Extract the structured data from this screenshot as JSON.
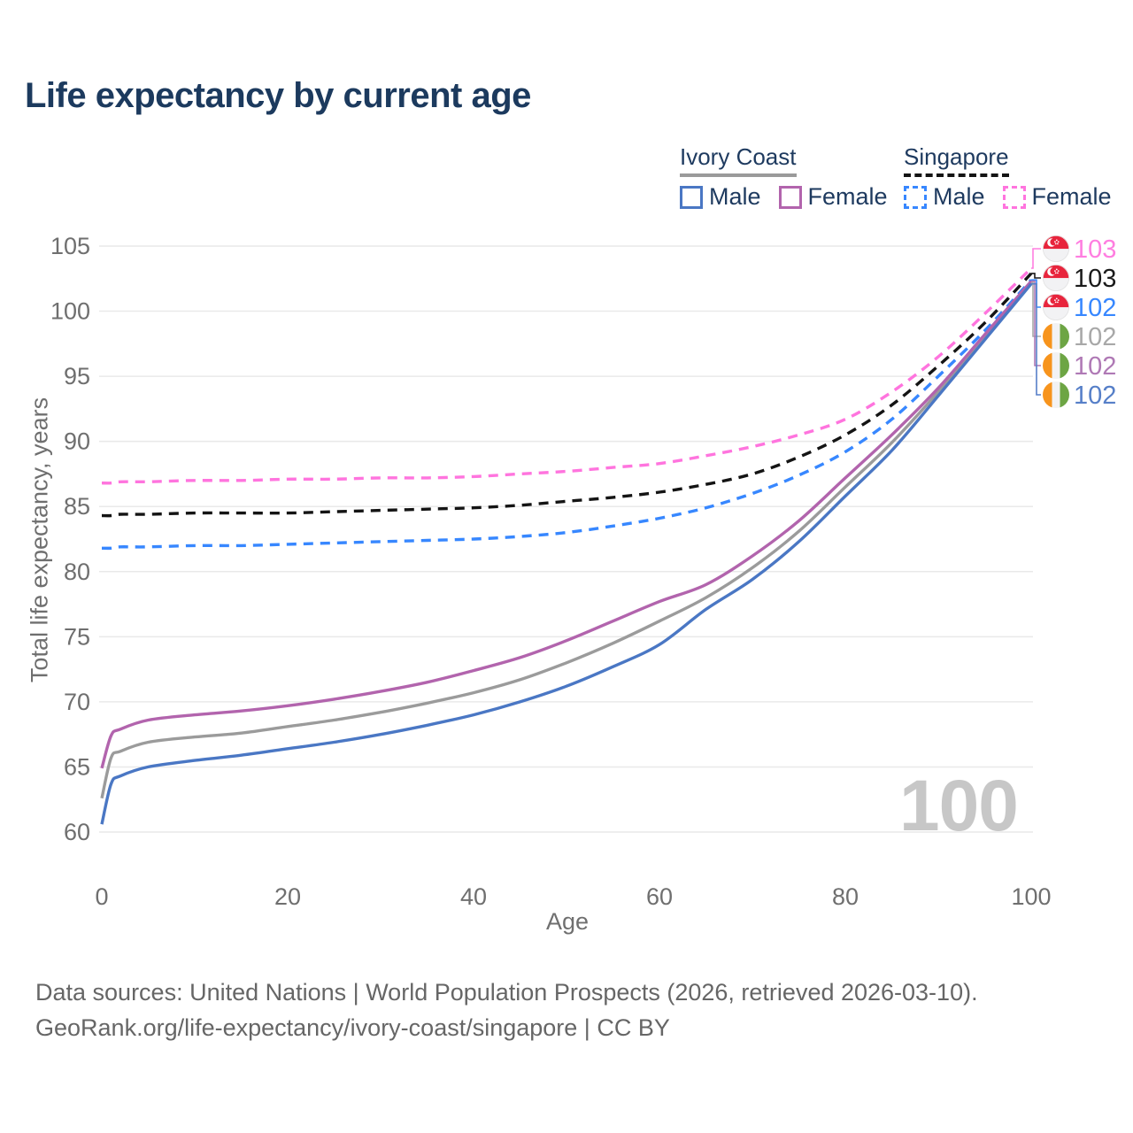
{
  "title": "Life expectancy by current age",
  "legend": {
    "groups": [
      {
        "label": "Ivory Coast",
        "line_style": "solid",
        "underline_color": "#9a9a9a",
        "items": [
          {
            "label": "Male",
            "color": "#4a77c4"
          },
          {
            "label": "Female",
            "color": "#b264ad"
          }
        ]
      },
      {
        "label": "Singapore",
        "line_style": "dashed",
        "underline_color": "#141414",
        "items": [
          {
            "label": "Male",
            "color": "#3787ff"
          },
          {
            "label": "Female",
            "color": "#ff74de"
          }
        ]
      }
    ]
  },
  "axes": {
    "x_label": "Age",
    "y_label": "Total life expectancy, years",
    "x_ticks": [
      0,
      20,
      40,
      60,
      80,
      100
    ],
    "y_ticks": [
      60,
      65,
      70,
      75,
      80,
      85,
      90,
      95,
      100,
      105
    ],
    "x_range": [
      0,
      100
    ],
    "y_range": [
      60,
      105
    ]
  },
  "watermark": "100",
  "end_labels": [
    {
      "flag": "singapore",
      "value": "103",
      "color": "#ff7ee0"
    },
    {
      "flag": "singapore",
      "value": "103",
      "color": "#1a1a1a"
    },
    {
      "flag": "singapore",
      "value": "102",
      "color": "#3787ff"
    },
    {
      "flag": "ivory-coast",
      "value": "102",
      "color": "#a8a8a8"
    },
    {
      "flag": "ivory-coast",
      "value": "102",
      "color": "#af79b5"
    },
    {
      "flag": "ivory-coast",
      "value": "102",
      "color": "#567fc8"
    }
  ],
  "footer": {
    "line1": "Data sources: United Nations | World Population Prospects (2026, retrieved 2026-03-10).",
    "line2": "GeoRank.org/life-expectancy/ivory-coast/singapore | CC BY"
  },
  "theme": {
    "title_color": "#1c3a5e",
    "grid_color": "#e9e9e9",
    "tick_color": "#6f6f6f",
    "footer_color": "#666666",
    "watermark_color": "#c7c7c7",
    "flag_singapore_red": "#e8243c",
    "flag_ivory_orange": "#f7941d",
    "flag_ivory_green": "#6da544"
  },
  "chart_data": {
    "type": "line",
    "title": "Life expectancy by current age",
    "xlabel": "Age",
    "ylabel": "Total life expectancy, years",
    "x_range": [
      0,
      100
    ],
    "y_range": [
      60,
      105
    ],
    "grid": "horizontal",
    "legend_position": "top-right",
    "x": [
      0,
      1,
      2,
      5,
      10,
      15,
      20,
      25,
      30,
      35,
      40,
      45,
      50,
      55,
      60,
      65,
      70,
      75,
      80,
      85,
      90,
      95,
      100
    ],
    "series": [
      {
        "name": "Singapore Female",
        "country": "Singapore",
        "sex": "Female",
        "style": "dashed",
        "color": "#ff74de",
        "values": [
          86.8,
          86.8,
          86.9,
          86.9,
          87.0,
          87.0,
          87.1,
          87.1,
          87.2,
          87.2,
          87.3,
          87.5,
          87.7,
          88.0,
          88.3,
          88.9,
          89.6,
          90.5,
          91.7,
          93.8,
          96.5,
          99.8,
          103.3
        ]
      },
      {
        "name": "Singapore Both Sexes",
        "country": "Singapore",
        "sex": "Both",
        "style": "dashed",
        "color": "#141414",
        "values": [
          84.3,
          84.3,
          84.4,
          84.4,
          84.5,
          84.5,
          84.5,
          84.6,
          84.7,
          84.8,
          84.9,
          85.1,
          85.4,
          85.7,
          86.1,
          86.7,
          87.5,
          88.8,
          90.5,
          92.8,
          95.8,
          99.1,
          102.9
        ]
      },
      {
        "name": "Singapore Male",
        "country": "Singapore",
        "sex": "Male",
        "style": "dashed",
        "color": "#3787ff",
        "values": [
          81.8,
          81.8,
          81.9,
          81.9,
          82.0,
          82.0,
          82.1,
          82.2,
          82.3,
          82.4,
          82.5,
          82.7,
          83.0,
          83.5,
          84.1,
          84.9,
          86.0,
          87.4,
          89.2,
          91.7,
          95.0,
          98.5,
          102.4
        ]
      },
      {
        "name": "Ivory Coast Both Sexes",
        "country": "Ivory Coast",
        "sex": "Both",
        "style": "solid",
        "color": "#9b9b9b",
        "values": [
          62.6,
          65.7,
          66.2,
          66.9,
          67.3,
          67.6,
          68.1,
          68.6,
          69.2,
          69.9,
          70.7,
          71.7,
          73.0,
          74.5,
          76.2,
          78.0,
          80.3,
          83.1,
          86.5,
          89.9,
          93.8,
          98.0,
          102.2
        ]
      },
      {
        "name": "Ivory Coast Female",
        "country": "Ivory Coast",
        "sex": "Female",
        "style": "solid",
        "color": "#b264ad",
        "values": [
          64.9,
          67.4,
          67.9,
          68.6,
          69.0,
          69.3,
          69.7,
          70.2,
          70.8,
          71.5,
          72.4,
          73.4,
          74.7,
          76.2,
          77.7,
          79.0,
          81.2,
          83.9,
          87.2,
          90.5,
          94.1,
          98.2,
          102.3
        ]
      },
      {
        "name": "Ivory Coast Male",
        "country": "Ivory Coast",
        "sex": "Male",
        "style": "solid",
        "color": "#4a77c4",
        "values": [
          60.6,
          63.7,
          64.3,
          65.0,
          65.5,
          65.9,
          66.4,
          66.9,
          67.5,
          68.2,
          69.0,
          70.0,
          71.2,
          72.7,
          74.4,
          77.1,
          79.4,
          82.3,
          85.8,
          89.3,
          93.5,
          97.8,
          102.1
        ]
      }
    ]
  }
}
